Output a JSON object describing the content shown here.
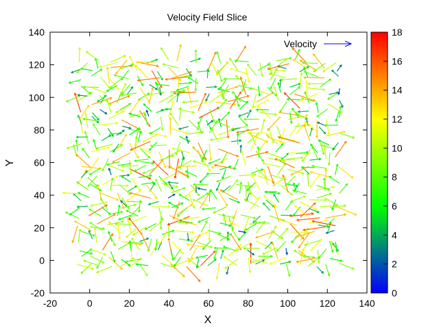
{
  "chart_data": {
    "type": "quiver",
    "title": "Velocity Field Slice",
    "xlabel": "X",
    "ylabel": "Y",
    "xlim": [
      -20,
      140
    ],
    "ylim": [
      -20,
      140
    ],
    "xticks": [
      -20,
      0,
      20,
      40,
      60,
      80,
      100,
      120,
      140
    ],
    "yticks": [
      -20,
      0,
      20,
      40,
      60,
      80,
      100,
      120,
      140
    ],
    "legend": {
      "label": "Velocity",
      "position": "top-right"
    },
    "colorbar": {
      "range": [
        0,
        18
      ],
      "ticks": [
        0,
        2,
        4,
        6,
        8,
        10,
        12,
        14,
        16,
        18
      ],
      "colormap": [
        "#0000ff",
        "#00ff00",
        "#ffff00",
        "#ff0000"
      ]
    },
    "grid_sampling": {
      "x_range": [
        -5,
        127
      ],
      "y_range": [
        -3,
        125
      ],
      "approx_spacing": 5,
      "magnitude_range": [
        1,
        17
      ]
    },
    "grid": false
  }
}
